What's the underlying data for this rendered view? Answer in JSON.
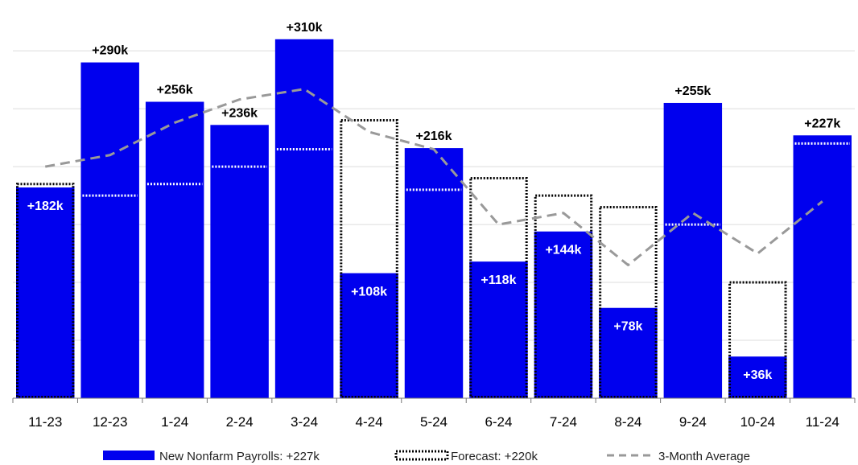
{
  "chart_data": {
    "type": "bar",
    "categories": [
      "11-23",
      "12-23",
      "1-24",
      "2-24",
      "3-24",
      "4-24",
      "5-24",
      "6-24",
      "7-24",
      "8-24",
      "9-24",
      "10-24",
      "11-24"
    ],
    "series": [
      {
        "name": "New Nonfarm Payrolls: +227k",
        "kind": "bar",
        "color": "#0000ee",
        "values": [
          182,
          290,
          256,
          236,
          310,
          108,
          216,
          118,
          144,
          78,
          255,
          36,
          227
        ],
        "labels": [
          "+182k",
          "+290k",
          "+256k",
          "+236k",
          "+310k",
          "+108k",
          "+216k",
          "+118k",
          "+144k",
          "+78k",
          "+255k",
          "+36k",
          "+227k"
        ]
      },
      {
        "name": "Forecast: +220k",
        "kind": "dotted-outline",
        "color": "#000000",
        "values": [
          185,
          175,
          185,
          200,
          215,
          240,
          180,
          190,
          175,
          165,
          150,
          100,
          220
        ]
      },
      {
        "name": "3-Month Average",
        "kind": "dashed-line",
        "color": "#999999",
        "values": [
          200,
          210,
          238,
          258,
          267,
          230,
          215,
          150,
          160,
          115,
          160,
          125,
          170
        ]
      }
    ],
    "ylim": [
      0,
      330
    ],
    "grid": true,
    "legend_position": "bottom"
  },
  "legend": {
    "bar": "New Nonfarm Payrolls: +227k",
    "forecast": "Forecast: +220k",
    "average": "3-Month Average"
  }
}
